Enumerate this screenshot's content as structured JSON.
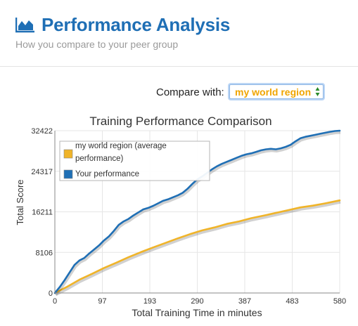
{
  "header": {
    "title": "Performance Analysis",
    "subtitle": "How you compare to your peer group",
    "icon": "area-chart-icon",
    "accent_color": "#1f6fb5"
  },
  "compare": {
    "label": "Compare with:",
    "selected": "my world region",
    "selected_color": "#f0a500"
  },
  "chart_data": {
    "type": "line",
    "title": "Training Performance Comparison",
    "xlabel": "Total Training Time in minutes",
    "ylabel": "Total Score",
    "xlim": [
      0,
      580
    ],
    "ylim": [
      0,
      32422
    ],
    "x_ticks": [
      "0",
      "97",
      "193",
      "290",
      "387",
      "483",
      "580"
    ],
    "y_ticks": [
      "0",
      "8106",
      "16211",
      "24317",
      "32422"
    ],
    "grid": true,
    "legend_position": "top-left",
    "series": [
      {
        "name": "my world region (average performance)",
        "color": "#f0b429",
        "x": [
          0,
          25,
          50,
          75,
          100,
          125,
          150,
          175,
          200,
          225,
          250,
          275,
          300,
          325,
          350,
          375,
          400,
          425,
          450,
          475,
          500,
          525,
          550,
          580
        ],
        "y": [
          0,
          1250,
          2650,
          3800,
          5000,
          6050,
          7150,
          8150,
          9100,
          10000,
          10900,
          11750,
          12500,
          13100,
          13800,
          14300,
          14950,
          15450,
          16000,
          16550,
          17100,
          17450,
          17900,
          18500
        ]
      },
      {
        "name": "Your performance",
        "color": "#1f6fb5",
        "x": [
          0,
          10,
          20,
          30,
          40,
          50,
          60,
          70,
          80,
          90,
          100,
          110,
          120,
          130,
          140,
          150,
          160,
          170,
          180,
          190,
          200,
          210,
          220,
          230,
          240,
          250,
          260,
          270,
          280,
          290,
          300,
          310,
          320,
          330,
          340,
          350,
          360,
          370,
          380,
          390,
          400,
          410,
          420,
          430,
          440,
          450,
          460,
          470,
          480,
          490,
          500,
          510,
          520,
          530,
          540,
          550,
          560,
          570,
          580
        ],
        "y": [
          0,
          1200,
          2600,
          4100,
          5600,
          6500,
          7000,
          7900,
          8700,
          9500,
          10500,
          11300,
          12400,
          13600,
          14300,
          14800,
          15500,
          16100,
          16700,
          17000,
          17400,
          17900,
          18400,
          18700,
          19100,
          19500,
          20000,
          20800,
          21800,
          22700,
          23300,
          24000,
          24700,
          25300,
          25800,
          26200,
          26600,
          27000,
          27400,
          27700,
          27900,
          28200,
          28500,
          28700,
          28800,
          28700,
          28900,
          29200,
          29600,
          30300,
          30900,
          31200,
          31400,
          31600,
          31800,
          32000,
          32200,
          32350,
          32422
        ]
      }
    ]
  }
}
